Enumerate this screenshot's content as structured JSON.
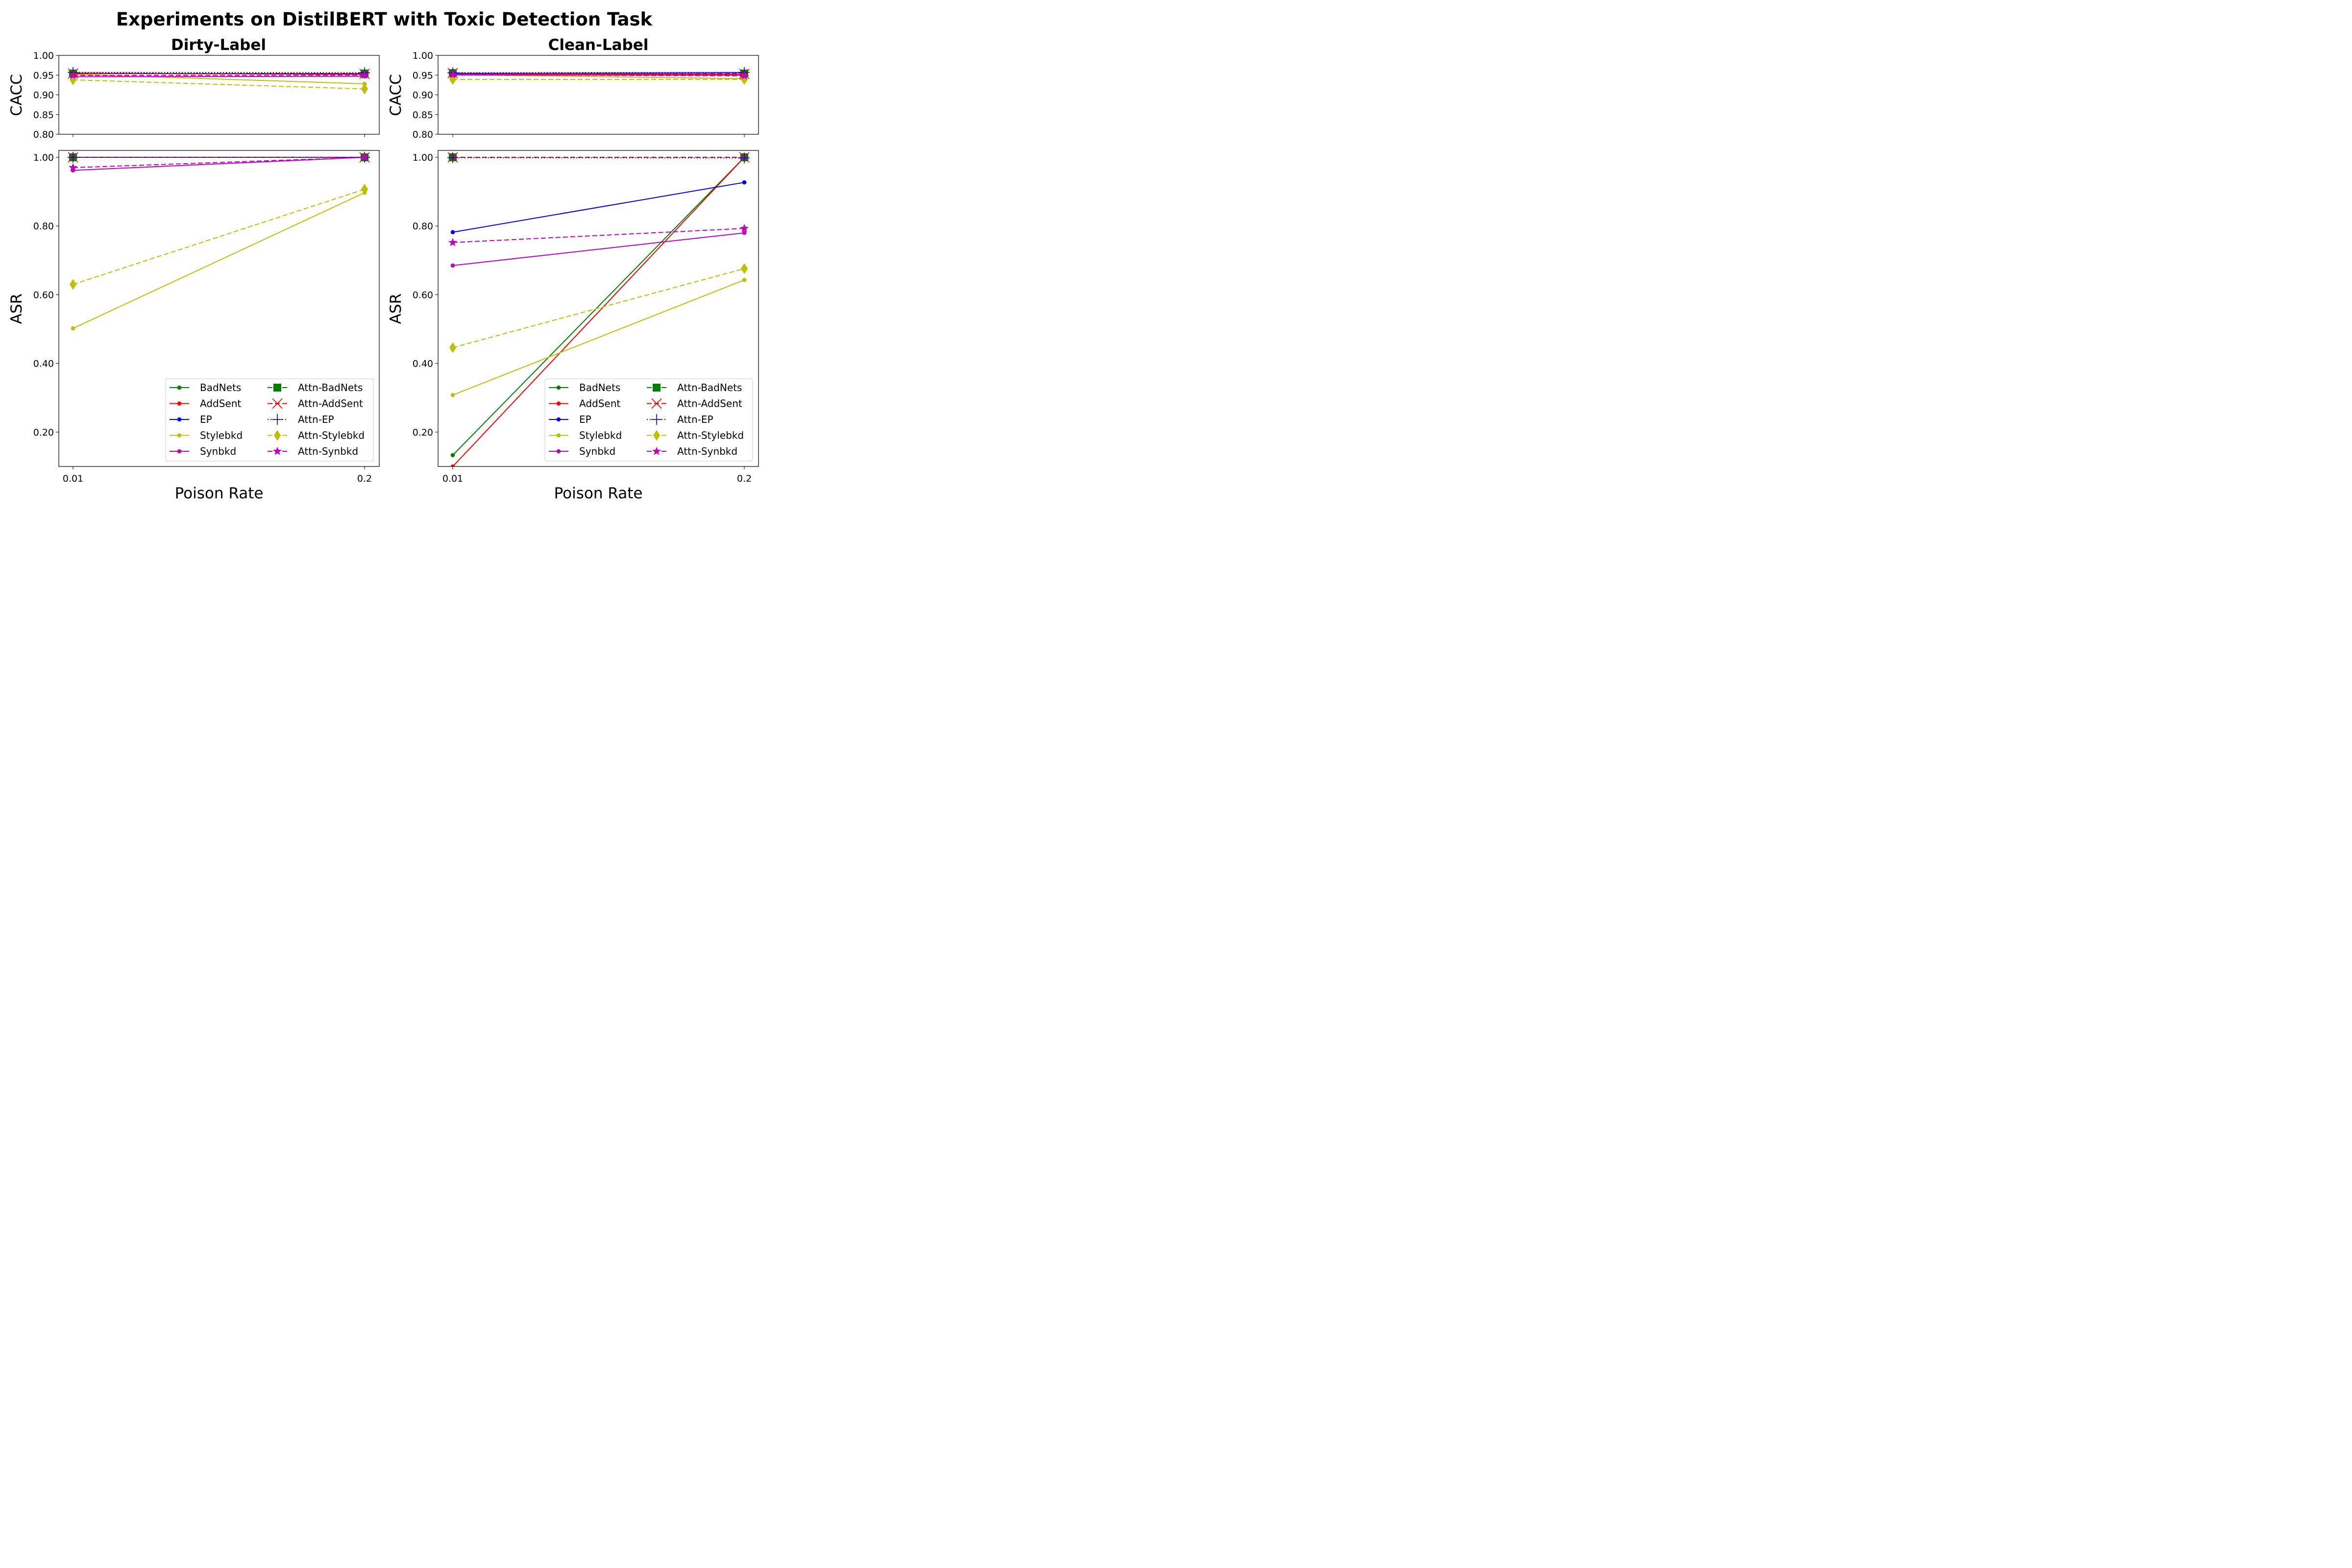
{
  "chart_data": {
    "type": "line",
    "title": "Experiments on DistilBERT with Toxic Detection Task",
    "x": [
      "0.01",
      "0.2"
    ],
    "xlabel": "Poison Rate",
    "legend_location": "lower right",
    "legend_columns": 2,
    "series_styles": [
      {
        "name": "BadNets",
        "color": "#008000",
        "dash": "solid",
        "marker": "circle"
      },
      {
        "name": "AddSent",
        "color": "#ff0000",
        "dash": "solid",
        "marker": "circle"
      },
      {
        "name": "EP",
        "color": "#0000ff",
        "dash": "solid",
        "marker": "circle"
      },
      {
        "name": "Stylebkd",
        "color": "#bfbf00",
        "dash": "solid",
        "marker": "circle"
      },
      {
        "name": "Synbkd",
        "color": "#bf00bf",
        "dash": "solid",
        "marker": "circle"
      },
      {
        "name": "Attn-BadNets",
        "color": "#008000",
        "dash": "dashed",
        "marker": "square"
      },
      {
        "name": "Attn-AddSent",
        "color": "#ff0000",
        "dash": "dashed",
        "marker": "x"
      },
      {
        "name": "Attn-EP",
        "color": "#0000ff",
        "dash": "dotted",
        "marker": "plus"
      },
      {
        "name": "Attn-Stylebkd",
        "color": "#bfbf00",
        "dash": "dashed",
        "marker": "diamond"
      },
      {
        "name": "Attn-Synbkd",
        "color": "#bf00bf",
        "dash": "dashed",
        "marker": "star"
      }
    ],
    "columns": [
      {
        "title": "Dirty-Label",
        "panels": [
          {
            "id": "cacc",
            "ylabel": "CACC",
            "ylim": [
              0.8,
              1.0
            ],
            "yticks": [
              "0.80",
              "0.85",
              "0.90",
              "0.95",
              "1.00"
            ],
            "series": [
              {
                "name": "BadNets",
                "values": [
                  0.955,
                  0.952
                ]
              },
              {
                "name": "AddSent",
                "values": [
                  0.955,
                  0.952
                ]
              },
              {
                "name": "EP",
                "values": [
                  0.954,
                  0.954
                ]
              },
              {
                "name": "Stylebkd",
                "values": [
                  0.952,
                  0.928
                ]
              },
              {
                "name": "Synbkd",
                "values": [
                  0.946,
                  0.947
                ]
              },
              {
                "name": "Attn-BadNets",
                "values": [
                  0.954,
                  0.954
                ]
              },
              {
                "name": "Attn-AddSent",
                "values": [
                  0.954,
                  0.953
                ]
              },
              {
                "name": "Attn-EP",
                "values": [
                  0.957,
                  0.956
                ]
              },
              {
                "name": "Attn-Stylebkd",
                "values": [
                  0.938,
                  0.915
                ]
              },
              {
                "name": "Attn-Synbkd",
                "values": [
                  0.949,
                  0.95
                ]
              }
            ]
          },
          {
            "id": "asr",
            "ylabel": "ASR",
            "ylim": [
              0.1,
              1.02
            ],
            "yticks": [
              "0.20",
              "0.40",
              "0.60",
              "0.80",
              "1.00"
            ],
            "series": [
              {
                "name": "BadNets",
                "values": [
                  1.0,
                  1.0
                ]
              },
              {
                "name": "AddSent",
                "values": [
                  1.0,
                  1.0
                ]
              },
              {
                "name": "EP",
                "values": [
                  1.0,
                  1.0
                ]
              },
              {
                "name": "Stylebkd",
                "values": [
                  0.502,
                  0.897
                ]
              },
              {
                "name": "Synbkd",
                "values": [
                  0.962,
                  1.0
                ]
              },
              {
                "name": "Attn-BadNets",
                "values": [
                  1.0,
                  1.0
                ]
              },
              {
                "name": "Attn-AddSent",
                "values": [
                  1.0,
                  1.0
                ]
              },
              {
                "name": "Attn-EP",
                "values": [
                  1.0,
                  1.0
                ]
              },
              {
                "name": "Attn-Stylebkd",
                "values": [
                  0.63,
                  0.907
                ]
              },
              {
                "name": "Attn-Synbkd",
                "values": [
                  0.97,
                  1.0
                ]
              }
            ]
          }
        ]
      },
      {
        "title": "Clean-Label",
        "panels": [
          {
            "id": "cacc",
            "ylabel": "CACC",
            "ylim": [
              0.8,
              1.0
            ],
            "yticks": [
              "0.80",
              "0.85",
              "0.90",
              "0.95",
              "1.00"
            ],
            "series": [
              {
                "name": "BadNets",
                "values": [
                  0.954,
                  0.951
                ]
              },
              {
                "name": "AddSent",
                "values": [
                  0.953,
                  0.952
                ]
              },
              {
                "name": "EP",
                "values": [
                  0.954,
                  0.956
                ]
              },
              {
                "name": "Stylebkd",
                "values": [
                  0.951,
                  0.941
                ]
              },
              {
                "name": "Synbkd",
                "values": [
                  0.95,
                  0.95
                ]
              },
              {
                "name": "Attn-BadNets",
                "values": [
                  0.955,
                  0.954
                ]
              },
              {
                "name": "Attn-AddSent",
                "values": [
                  0.955,
                  0.953
                ]
              },
              {
                "name": "Attn-EP",
                "values": [
                  0.956,
                  0.957
                ]
              },
              {
                "name": "Attn-Stylebkd",
                "values": [
                  0.939,
                  0.939
                ]
              },
              {
                "name": "Attn-Synbkd",
                "values": [
                  0.951,
                  0.948
                ]
              }
            ]
          },
          {
            "id": "asr",
            "ylabel": "ASR",
            "ylim": [
              0.1,
              1.02
            ],
            "yticks": [
              "0.20",
              "0.40",
              "0.60",
              "0.80",
              "1.00"
            ],
            "series": [
              {
                "name": "BadNets",
                "values": [
                  0.133,
                  1.0
                ]
              },
              {
                "name": "AddSent",
                "values": [
                  0.1,
                  1.0
                ]
              },
              {
                "name": "EP",
                "values": [
                  0.782,
                  0.927
                ]
              },
              {
                "name": "Stylebkd",
                "values": [
                  0.308,
                  0.643
                ]
              },
              {
                "name": "Synbkd",
                "values": [
                  0.685,
                  0.78
                ]
              },
              {
                "name": "Attn-BadNets",
                "values": [
                  1.0,
                  1.0
                ]
              },
              {
                "name": "Attn-AddSent",
                "values": [
                  1.0,
                  1.0
                ]
              },
              {
                "name": "Attn-EP",
                "values": [
                  0.999,
                  0.998
                ]
              },
              {
                "name": "Attn-Stylebkd",
                "values": [
                  0.446,
                  0.676
                ]
              },
              {
                "name": "Attn-Synbkd",
                "values": [
                  0.752,
                  0.793
                ]
              }
            ]
          }
        ]
      }
    ]
  }
}
